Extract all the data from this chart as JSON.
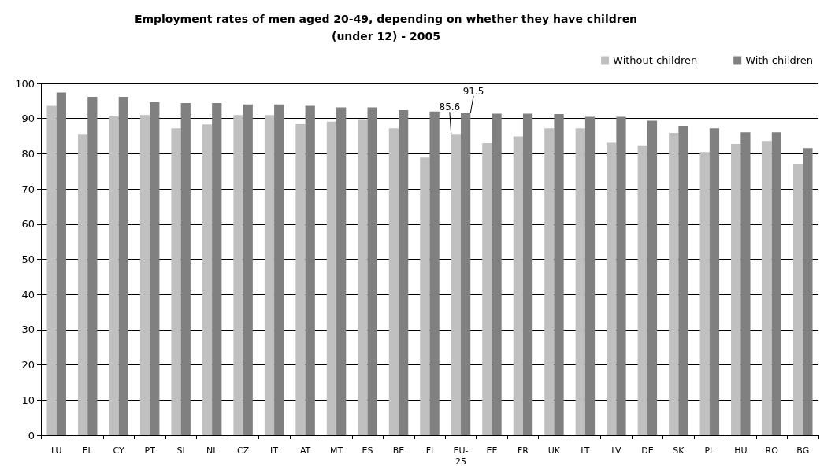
{
  "chart_data": {
    "type": "bar",
    "title": "Employment rates of men aged 20-49, depending on whether they have children (under 12) - 2005",
    "categories": [
      "LU",
      "EL",
      "CY",
      "PT",
      "SI",
      "NL",
      "CZ",
      "IT",
      "AT",
      "MT",
      "ES",
      "BE",
      "FI",
      "EU-25",
      "EE",
      "FR",
      "UK",
      "LT",
      "LV",
      "DE",
      "SK",
      "PL",
      "HU",
      "RO",
      "BG"
    ],
    "series": [
      {
        "name": "Without children",
        "color": "#c0c0c0",
        "values": [
          93.6,
          85.6,
          90.6,
          91.0,
          87.2,
          88.3,
          91.0,
          91.0,
          88.6,
          89.1,
          89.8,
          87.2,
          78.9,
          85.6,
          83.0,
          84.9,
          87.2,
          87.2,
          83.1,
          82.4,
          85.9,
          80.5,
          82.8,
          83.6,
          77.2
        ],
        "value_labels": [
          null,
          null,
          null,
          null,
          null,
          null,
          null,
          null,
          null,
          null,
          null,
          null,
          null,
          "85.6",
          null,
          null,
          null,
          null,
          null,
          null,
          null,
          null,
          null,
          null,
          null
        ]
      },
      {
        "name": "With children",
        "color": "#808080",
        "values": [
          97.4,
          96.2,
          96.2,
          94.7,
          94.4,
          94.4,
          94.0,
          94.0,
          93.6,
          93.2,
          93.2,
          92.4,
          92.0,
          91.5,
          91.4,
          91.4,
          91.3,
          90.5,
          90.5,
          89.4,
          87.9,
          87.2,
          86.1,
          86.1,
          81.6
        ],
        "value_labels": [
          null,
          null,
          null,
          null,
          null,
          null,
          null,
          null,
          null,
          null,
          null,
          null,
          null,
          "91.5",
          null,
          null,
          null,
          null,
          null,
          null,
          null,
          null,
          null,
          null,
          null
        ]
      }
    ],
    "ylim": [
      0,
      100
    ],
    "yticks": [
      0,
      10,
      20,
      30,
      40,
      50,
      60,
      70,
      80,
      90,
      100
    ],
    "grid": "y",
    "legend": "top right"
  }
}
